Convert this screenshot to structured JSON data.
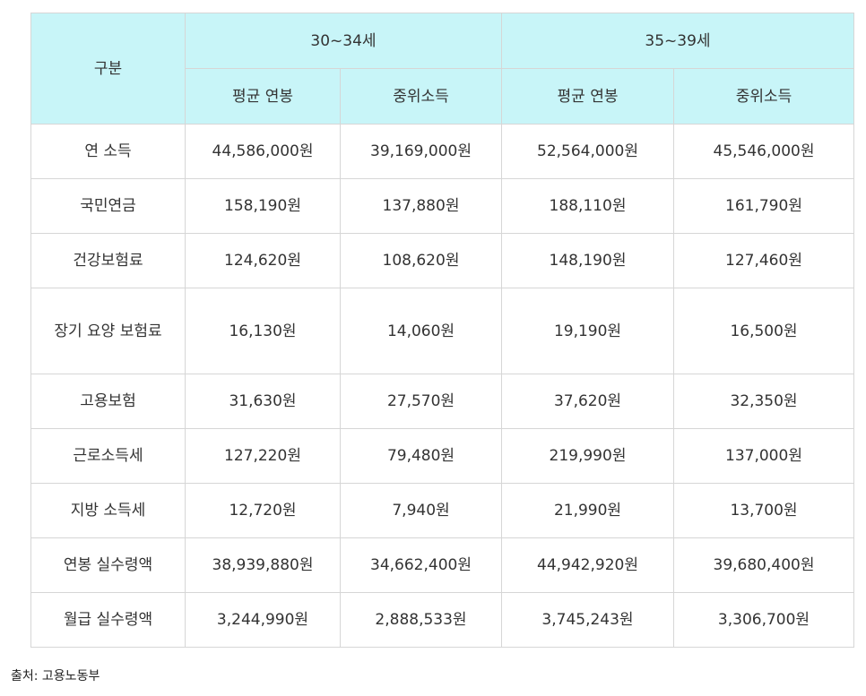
{
  "table": {
    "header": {
      "category": "구분",
      "groups": [
        "30~34세",
        "35~39세"
      ],
      "subheaders": [
        "평균 연봉",
        "중위소득",
        "평균 연봉",
        "중위소득"
      ]
    },
    "rows": [
      {
        "label": "연 소득",
        "cells": [
          "44,586,000원",
          "39,169,000원",
          "52,564,000원",
          "45,546,000원"
        ]
      },
      {
        "label": "국민연금",
        "cells": [
          "158,190원",
          "137,880원",
          "188,110원",
          "161,790원"
        ]
      },
      {
        "label": "건강보험료",
        "cells": [
          "124,620원",
          "108,620원",
          "148,190원",
          "127,460원"
        ]
      },
      {
        "label": "장기 요양 보험료",
        "cells": [
          "16,130원",
          "14,060원",
          "19,190원",
          "16,500원"
        ]
      },
      {
        "label": "고용보험",
        "cells": [
          "31,630원",
          "27,570원",
          "37,620원",
          "32,350원"
        ]
      },
      {
        "label": "근로소득세",
        "cells": [
          "127,220원",
          "79,480원",
          "219,990원",
          "137,000원"
        ]
      },
      {
        "label": "지방 소득세",
        "cells": [
          "12,720원",
          "7,940원",
          "21,990원",
          "13,700원"
        ]
      },
      {
        "label": "연봉 실수령액",
        "cells": [
          "38,939,880원",
          "34,662,400원",
          "44,942,920원",
          "39,680,400원"
        ]
      },
      {
        "label": "월급 실수령액",
        "cells": [
          "3,244,990원",
          "2,888,533원",
          "3,745,243원",
          "3,306,700원"
        ]
      }
    ]
  },
  "source": "출처: 고용노동부",
  "colors": {
    "header_bg": "#c8f5f8",
    "border": "#d6d6d6",
    "text": "#333333"
  }
}
